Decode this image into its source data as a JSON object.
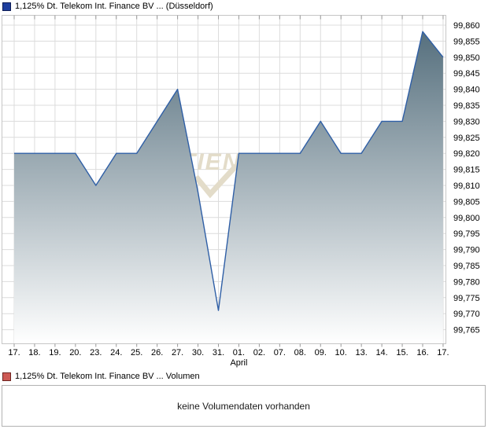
{
  "price_chart": {
    "legend": {
      "label": "1,125% Dt. Telekom Int. Finance BV ... (Düsseldorf)",
      "color": "#1e3e9e",
      "border": "#0d1c55"
    }
  },
  "chart_data": {
    "type": "area",
    "title": "1,125% Dt. Telekom Int. Finance BV ... (Düsseldorf)",
    "x_tick_labels": [
      "17.",
      "18.",
      "19.",
      "20.",
      "23.",
      "24.",
      "25.",
      "26.",
      "27.",
      "30.",
      "31.",
      "01.",
      "02.",
      "07.",
      "08.",
      "09.",
      "10.",
      "13.",
      "14.",
      "15.",
      "16.",
      "17."
    ],
    "x_month_label": "April",
    "x_month_index": 11,
    "series": [
      {
        "name": "1,125% Dt. Telekom Int. Finance BV ...",
        "values": [
          99.82,
          99.82,
          99.82,
          99.82,
          99.81,
          99.82,
          99.82,
          99.83,
          99.84,
          99.808,
          99.771,
          99.82,
          99.82,
          99.82,
          99.82,
          99.83,
          99.82,
          99.82,
          99.83,
          99.83,
          99.858,
          99.85
        ]
      }
    ],
    "y_tick_labels": [
      "99,860",
      "99,855",
      "99,850",
      "99,845",
      "99,840",
      "99,835",
      "99,830",
      "99,825",
      "99,820",
      "99,815",
      "99,810",
      "99,805",
      "99,800",
      "99,795",
      "99,790",
      "99,785",
      "99,780",
      "99,775",
      "99,770",
      "99,765"
    ],
    "y_tick_values": [
      99.86,
      99.855,
      99.85,
      99.845,
      99.84,
      99.835,
      99.83,
      99.825,
      99.82,
      99.815,
      99.81,
      99.805,
      99.8,
      99.795,
      99.79,
      99.785,
      99.78,
      99.775,
      99.77,
      99.765
    ],
    "ylim": [
      99.761,
      99.863
    ],
    "grid": true,
    "legend_position": "top-left",
    "line_color": "#2f5fa6",
    "fill_gradient_top": "#4d6877",
    "fill_gradient_bottom": "#ffffff",
    "grid_color": "#dcdcdc",
    "border_color": "#c6c6c6",
    "tick_color": "#999999"
  },
  "watermark": {
    "text": "TIEN",
    "color": "#e3dcc9"
  },
  "volume_chart": {
    "legend": {
      "label": "1,125% Dt. Telekom Int. Finance BV ... Volumen",
      "color": "#cd5a55",
      "border": "#6e2421"
    },
    "message": "keine Volumendaten vorhanden"
  }
}
